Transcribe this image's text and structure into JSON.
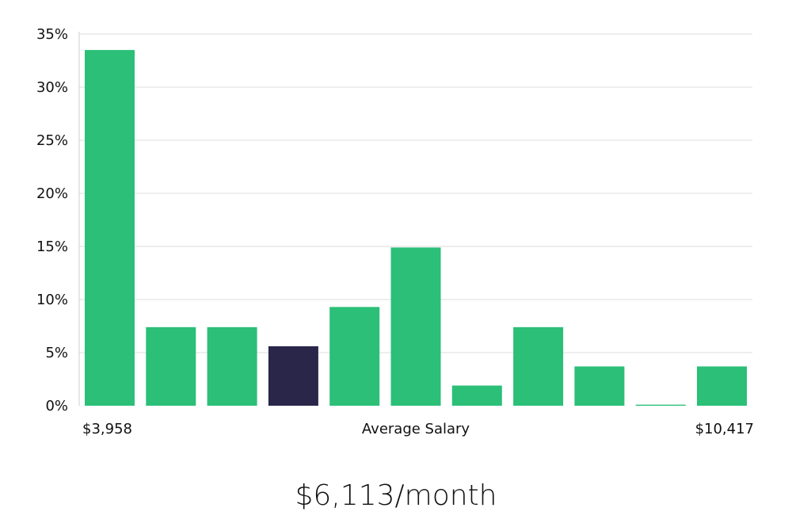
{
  "chart_data": {
    "type": "bar",
    "values": [
      33.5,
      7.4,
      7.4,
      5.6,
      9.3,
      14.9,
      1.9,
      7.4,
      3.7,
      0.1,
      3.7
    ],
    "highlight_index": 3,
    "colors": {
      "bar": "#2bbf78",
      "highlight": "#29264a"
    },
    "ylim": [
      0,
      35
    ],
    "yticks": [
      0,
      5,
      10,
      15,
      20,
      25,
      30,
      35
    ],
    "ytick_suffix": "%",
    "grid": true,
    "x_range_start_label": "$3,958",
    "x_range_end_label": "$10,417",
    "xlabel": "Average Salary"
  },
  "headline": "$6,113/month"
}
